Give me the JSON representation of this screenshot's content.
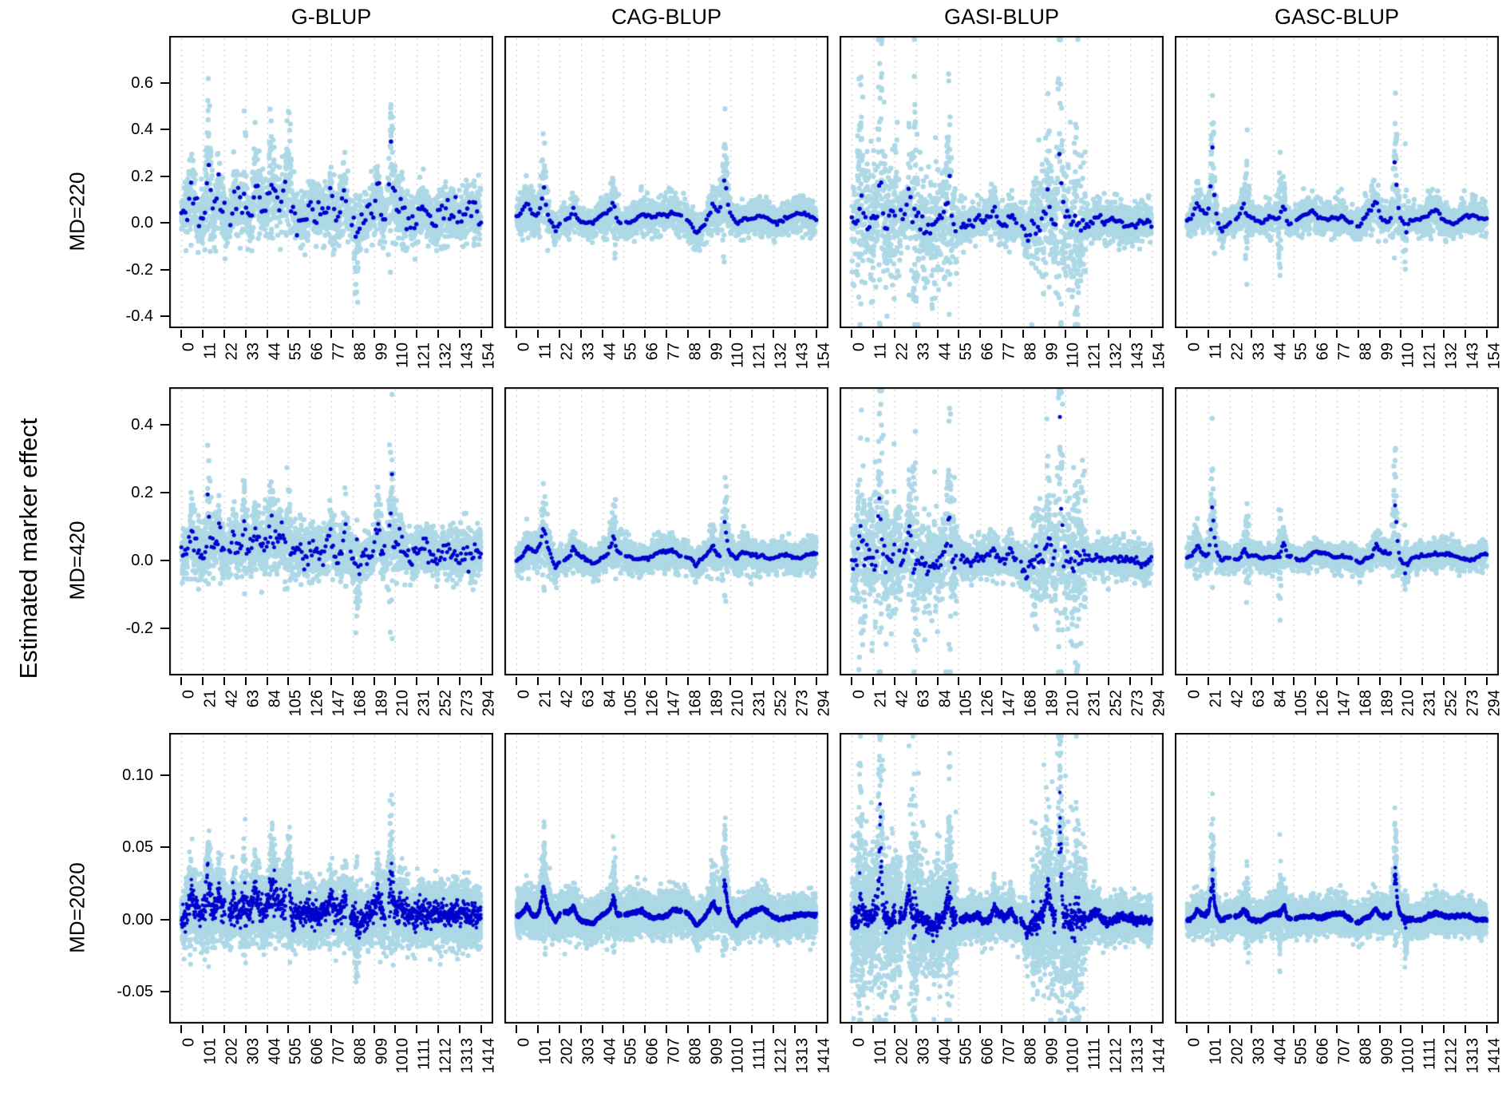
{
  "chart_data": {
    "type": "scatter",
    "description": "Grid of 12 scatter panels (3 marker densities x 4 BLUP methods) showing estimated marker effects along the genome; light-blue dots are individual estimates, dark-blue dots are the mean effect profile; dotted vertical gridlines at axis ticks.",
    "ylabel": "Estimated marker effect",
    "colors": {
      "scatter_point": "#ADD8E6",
      "mean_point": "#0000CD",
      "gridline": "#C9C9C9",
      "panel_border": "#000000",
      "text": "#000000",
      "background": "#FFFFFF"
    },
    "legend": {
      "position": "none"
    },
    "grid": "vertical-dotted-at-ticks",
    "rows": [
      {
        "label": "MD=220",
        "xmax": 154,
        "xticks": [
          0,
          11,
          22,
          33,
          44,
          55,
          66,
          77,
          88,
          99,
          110,
          121,
          132,
          143,
          154
        ],
        "ytick_vals": [
          0.6,
          0.4,
          0.2,
          0.0,
          -0.2,
          -0.4
        ],
        "ytick_labels": [
          "0.6",
          "0.4",
          "0.2",
          "0.0",
          "-0.2",
          "-0.4"
        ],
        "ylim": [
          -0.45,
          0.8
        ],
        "n_mean_points": 154,
        "n_scatter_points": 2600,
        "peak_scale": [
          0.26,
          0.17,
          0.5,
          0.29
        ],
        "noise_sd": [
          0.048,
          0.03,
          0.038,
          0.026
        ]
      },
      {
        "label": "MD=420",
        "xmax": 294,
        "xticks": [
          0,
          21,
          42,
          63,
          84,
          105,
          126,
          147,
          168,
          189,
          210,
          231,
          252,
          273,
          294
        ],
        "ytick_vals": [
          0.4,
          0.2,
          0.0,
          -0.2
        ],
        "ytick_labels": [
          "0.4",
          "0.2",
          "0.0",
          "-0.2"
        ],
        "ylim": [
          -0.34,
          0.51
        ],
        "n_mean_points": 240,
        "n_scatter_points": 3200,
        "peak_scale": [
          0.155,
          0.105,
          0.3,
          0.155
        ],
        "noise_sd": [
          0.03,
          0.019,
          0.024,
          0.016
        ]
      },
      {
        "label": "MD=2020",
        "xmax": 1414,
        "xticks": [
          0,
          101,
          202,
          303,
          404,
          505,
          606,
          707,
          808,
          909,
          1010,
          1111,
          1212,
          1313,
          1414
        ],
        "ytick_vals": [
          0.1,
          0.05,
          0.0,
          -0.05
        ],
        "ytick_labels": [
          "0.10",
          "0.05",
          "0.00",
          "-0.05"
        ],
        "ylim": [
          -0.072,
          0.129
        ],
        "n_mean_points": 1300,
        "n_scatter_points": 9000,
        "peak_scale": [
          0.029,
          0.025,
          0.066,
          0.027
        ],
        "noise_sd": [
          0.0085,
          0.0058,
          0.0062,
          0.0048
        ]
      }
    ],
    "columns": [
      {
        "name": "G-BLUP",
        "base": 0.1,
        "wobble": {
          "amp": 0.1,
          "f1": 72,
          "f2": 113
        },
        "dark_jitter": 0.45,
        "peaks": [
          [
            0.035,
            0.45,
            0.012
          ],
          [
            0.09,
            0.8,
            0.009
          ],
          [
            0.125,
            0.45,
            0.01
          ],
          [
            0.175,
            0.35,
            0.01
          ],
          [
            0.21,
            0.35,
            0.009
          ],
          [
            0.245,
            0.55,
            0.009,
            0.02
          ],
          [
            0.3,
            0.45,
            0.012,
            0.025
          ],
          [
            0.36,
            0.55,
            0.03,
            0.005
          ],
          [
            0.43,
            0.2,
            0.012
          ],
          [
            0.5,
            0.4,
            0.01
          ],
          [
            0.545,
            0.4,
            0.01
          ],
          [
            0.585,
            -0.3,
            0.015
          ],
          [
            0.655,
            0.5,
            0.009
          ],
          [
            0.7,
            1.0,
            0.008
          ],
          [
            0.73,
            0.25,
            0.01
          ],
          [
            0.8,
            0.15,
            0.012
          ],
          [
            0.875,
            0.12,
            0.012
          ],
          [
            0.95,
            0.1,
            0.012
          ]
        ],
        "sd_bands": [],
        "sd_spikes": [
          [
            0.09,
            0.25,
            0.008
          ],
          [
            0.21,
            0.3,
            0.006
          ],
          [
            0.3,
            0.25,
            0.006
          ],
          [
            0.36,
            0.3,
            0.006
          ],
          [
            0.585,
            0.25,
            0.01
          ],
          [
            0.7,
            0.45,
            0.007
          ]
        ]
      },
      {
        "name": "CAG-BLUP",
        "base": 0.1,
        "wobble": {
          "amp": 0.14,
          "f1": 28,
          "f2": 47
        },
        "dark_jitter": 0.1,
        "peaks": [
          [
            0.035,
            0.3,
            0.015
          ],
          [
            0.09,
            0.8,
            0.011
          ],
          [
            0.13,
            -0.3,
            0.012
          ],
          [
            0.19,
            0.32,
            0.012
          ],
          [
            0.255,
            -0.18,
            0.022
          ],
          [
            0.325,
            0.45,
            0.014,
            0.006
          ],
          [
            0.42,
            0.1,
            0.02
          ],
          [
            0.475,
            0.12,
            0.018
          ],
          [
            0.52,
            0.12,
            0.018
          ],
          [
            0.6,
            -0.28,
            0.018
          ],
          [
            0.655,
            0.4,
            0.016
          ],
          [
            0.695,
            1.0,
            0.009
          ],
          [
            0.735,
            -0.18,
            0.01
          ],
          [
            0.82,
            0.08,
            0.02
          ],
          [
            0.9,
            0.06,
            0.02
          ]
        ],
        "sd_bands": [],
        "sd_spikes": [
          [
            0.09,
            0.3,
            0.007
          ],
          [
            0.325,
            0.35,
            0.006
          ],
          [
            0.695,
            0.5,
            0.007
          ]
        ]
      },
      {
        "name": "GASI-BLUP",
        "base": 0.0,
        "wobble": {
          "amp": 0.04,
          "f1": 45,
          "f2": 77
        },
        "dark_jitter": 0.22,
        "peaks": [
          [
            0.03,
            0.22,
            0.008
          ],
          [
            0.095,
            1.0,
            0.006
          ],
          [
            0.15,
            0.1,
            0.01
          ],
          [
            0.19,
            0.3,
            0.009
          ],
          [
            0.26,
            -0.06,
            0.02
          ],
          [
            0.325,
            0.3,
            0.012,
            0.005
          ],
          [
            0.42,
            0.06,
            0.015
          ],
          [
            0.475,
            0.1,
            0.012
          ],
          [
            0.53,
            0.12,
            0.01
          ],
          [
            0.585,
            -0.14,
            0.012
          ],
          [
            0.655,
            0.3,
            0.009
          ],
          [
            0.695,
            1.0,
            0.006
          ],
          [
            0.735,
            -0.08,
            0.01
          ],
          [
            0.82,
            0.07,
            0.015
          ]
        ],
        "sd_bands": [
          [
            0.0,
            0.165,
            3.0
          ],
          [
            0.19,
            0.35,
            2.4
          ],
          [
            0.6,
            0.78,
            3.0
          ]
        ],
        "sd_spikes": [
          [
            0.028,
            0.35,
            0.007
          ],
          [
            0.095,
            0.6,
            0.006
          ],
          [
            0.21,
            0.35,
            0.008
          ],
          [
            0.325,
            0.35,
            0.006
          ],
          [
            0.695,
            0.65,
            0.006
          ],
          [
            0.75,
            0.3,
            0.008
          ]
        ]
      },
      {
        "name": "GASC-BLUP",
        "base": 0.06,
        "wobble": {
          "amp": 0.08,
          "f1": 33,
          "f2": 58
        },
        "dark_jitter": 0.12,
        "peaks": [
          [
            0.035,
            0.22,
            0.012
          ],
          [
            0.085,
            1.0,
            0.007
          ],
          [
            0.115,
            -0.12,
            0.009
          ],
          [
            0.19,
            0.22,
            0.011
          ],
          [
            0.25,
            -0.08,
            0.02
          ],
          [
            0.325,
            0.3,
            0.012,
            0.005
          ],
          [
            0.42,
            0.06,
            0.018
          ],
          [
            0.52,
            0.06,
            0.015
          ],
          [
            0.575,
            -0.1,
            0.015
          ],
          [
            0.63,
            0.2,
            0.012
          ],
          [
            0.695,
            1.05,
            0.007
          ],
          [
            0.73,
            -0.15,
            0.008
          ],
          [
            0.83,
            0.06,
            0.02
          ],
          [
            0.92,
            0.04,
            0.02
          ]
        ],
        "sd_bands": [],
        "sd_spikes": [
          [
            0.085,
            0.3,
            0.006
          ],
          [
            0.2,
            0.35,
            0.005
          ],
          [
            0.31,
            0.4,
            0.005
          ],
          [
            0.695,
            0.4,
            0.006
          ],
          [
            0.73,
            0.3,
            0.006
          ]
        ]
      }
    ],
    "mean_curve_gaps": [
      0.152,
      0.355,
      0.557,
      0.686
    ]
  }
}
